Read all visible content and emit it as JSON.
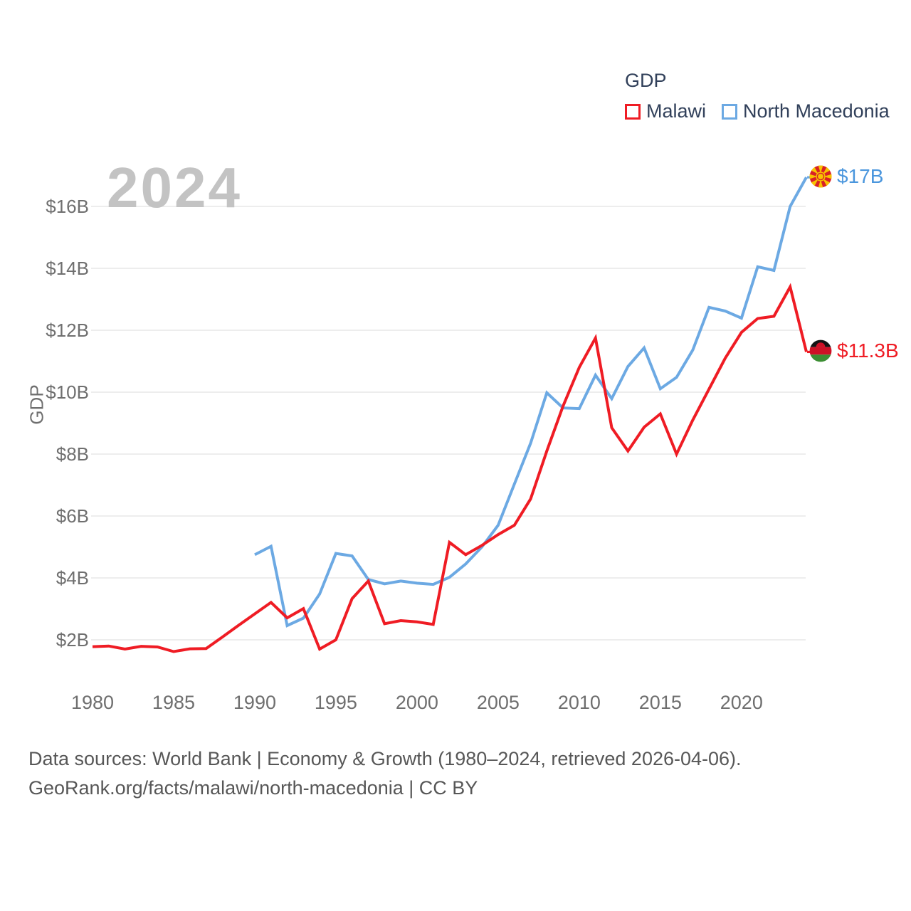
{
  "watermark": "2024",
  "legend": {
    "title": "GDP",
    "items": [
      {
        "label": "Malawi",
        "color": "#ef1c24"
      },
      {
        "label": "North Macedonia",
        "color": "#6ca9e3"
      }
    ]
  },
  "y_axis": {
    "title": "GDP",
    "ticks": [
      {
        "label": "$16B",
        "value": 16
      },
      {
        "label": "$14B",
        "value": 14
      },
      {
        "label": "$12B",
        "value": 12
      },
      {
        "label": "$10B",
        "value": 10
      },
      {
        "label": "$8B",
        "value": 8
      },
      {
        "label": "$6B",
        "value": 6
      },
      {
        "label": "$4B",
        "value": 4
      },
      {
        "label": "$2B",
        "value": 2
      }
    ]
  },
  "x_axis": {
    "ticks": [
      {
        "label": "1980",
        "value": 1980
      },
      {
        "label": "1985",
        "value": 1985
      },
      {
        "label": "1990",
        "value": 1990
      },
      {
        "label": "1995",
        "value": 1995
      },
      {
        "label": "2000",
        "value": 2000
      },
      {
        "label": "2005",
        "value": 2005
      },
      {
        "label": "2010",
        "value": 2010
      },
      {
        "label": "2015",
        "value": 2015
      },
      {
        "label": "2020",
        "value": 2020
      }
    ]
  },
  "end_labels": [
    {
      "series": "North Macedonia",
      "label": "$17B",
      "value": 16.94,
      "color": "#4a96dd",
      "flag": "north-macedonia"
    },
    {
      "series": "Malawi",
      "label": "$11.3B",
      "value": 11.3,
      "color": "#ef1c24",
      "flag": "malawi"
    }
  ],
  "footer": {
    "line1": "Data sources: World Bank | Economy & Growth (1980–2024, retrieved 2026-04-06).",
    "line2": "GeoRank.org/facts/malawi/north-macedonia | CC BY"
  },
  "chart_data": {
    "type": "line",
    "title": "GDP",
    "ylabel": "GDP",
    "y_unit": "$B",
    "x_domain": [
      1980,
      2024
    ],
    "y_gridlines": [
      2,
      4,
      6,
      8,
      10,
      12,
      14,
      16
    ],
    "grid": true,
    "legend_position": "top-right",
    "series": [
      {
        "name": "Malawi",
        "color": "#ef1c24",
        "start_year": 1980,
        "values": [
          1.78,
          1.8,
          1.7,
          1.79,
          1.77,
          1.62,
          1.71,
          1.72,
          2.09,
          2.47,
          2.84,
          3.21,
          2.71,
          3.01,
          1.7,
          2.0,
          3.33,
          3.9,
          2.52,
          2.62,
          2.58,
          2.5,
          5.15,
          4.75,
          5.05,
          5.4,
          5.7,
          6.55,
          8.1,
          9.55,
          10.8,
          11.75,
          8.85,
          8.1,
          8.87,
          9.3,
          8.0,
          9.1,
          10.1,
          11.1,
          11.93,
          12.38,
          12.45,
          13.4,
          11.3
        ]
      },
      {
        "name": "North Macedonia",
        "color": "#6ca9e3",
        "start_year": 1990,
        "values": [
          4.75,
          5.02,
          2.46,
          2.7,
          3.48,
          4.79,
          4.71,
          3.95,
          3.81,
          3.9,
          3.83,
          3.79,
          4.02,
          4.45,
          5.0,
          5.7,
          7.03,
          8.35,
          9.98,
          9.49,
          9.47,
          10.55,
          9.79,
          10.83,
          11.43,
          10.11,
          10.48,
          11.36,
          12.74,
          12.62,
          12.39,
          14.05,
          13.93,
          16.0,
          16.94
        ]
      }
    ]
  }
}
